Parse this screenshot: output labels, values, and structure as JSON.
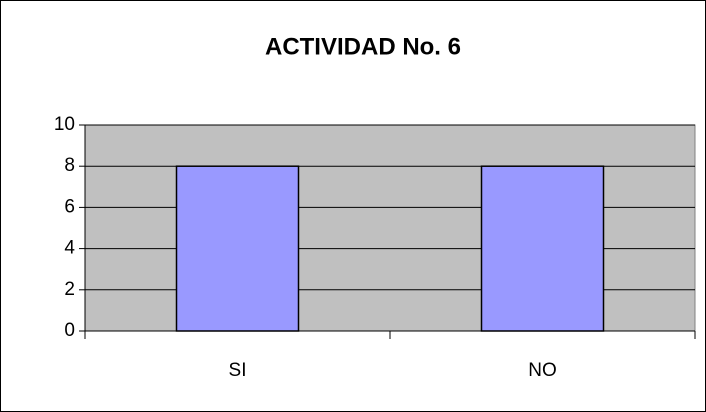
{
  "chart_data": {
    "type": "bar",
    "title": "ACTIVIDAD No. 6",
    "categories": [
      "SI",
      "NO"
    ],
    "values": [
      8,
      8
    ],
    "color": "#9999ff",
    "ylim": [
      0,
      10
    ],
    "yticks": [
      0,
      2,
      4,
      6,
      8,
      10
    ],
    "grid": true
  }
}
